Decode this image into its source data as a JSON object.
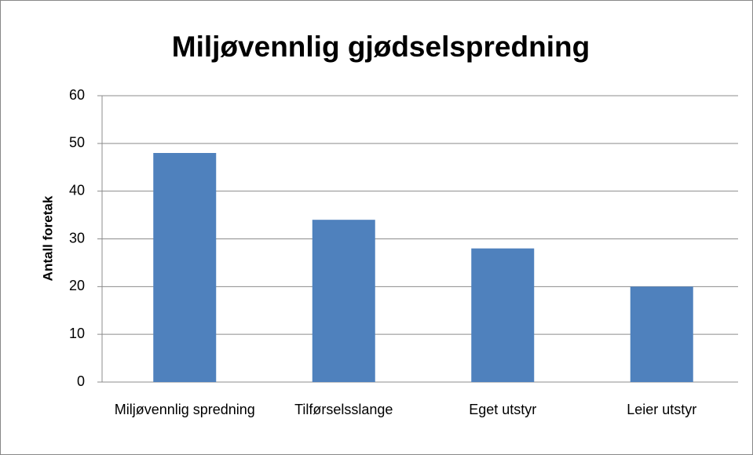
{
  "chart_data": {
    "type": "bar",
    "title": "Miljøvennlig gjødselspredning",
    "y_label": "Antall foretak",
    "categories": [
      "Miljøvennlig spredning",
      "Tilførselsslange",
      "Eget utstyr",
      "Leier utstyr"
    ],
    "values": [
      48,
      34,
      28,
      20
    ],
    "color": "#4f81bd",
    "ylim": [
      0,
      60
    ],
    "yticks": [
      0,
      10,
      20,
      30,
      40,
      50,
      60
    ],
    "grid": true
  }
}
